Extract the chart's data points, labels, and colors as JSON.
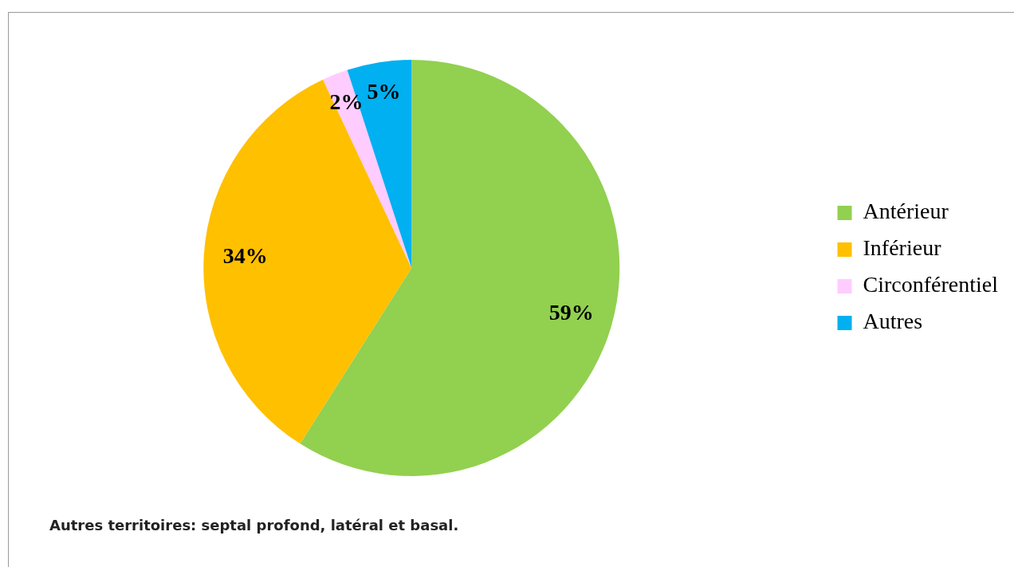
{
  "chart_data": {
    "type": "pie",
    "categories": [
      "Antérieur",
      "Inférieur",
      "Circonférentiel",
      "Autres"
    ],
    "values": [
      59,
      34,
      2,
      5
    ],
    "colors": [
      "#92d050",
      "#ffc000",
      "#ffccff",
      "#00b0f0"
    ],
    "value_labels": [
      "59%",
      "34%",
      "2%",
      "5%"
    ],
    "legend": "right",
    "annotations": [
      "Autres territoires: septal profond, latéral et basal."
    ]
  }
}
